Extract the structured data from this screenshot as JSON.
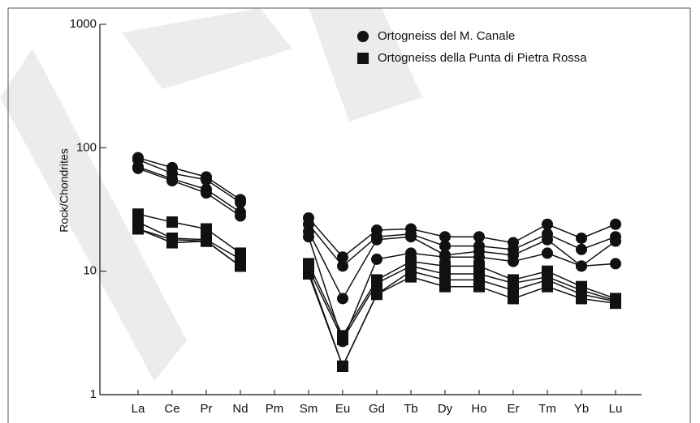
{
  "chart_data": {
    "type": "line",
    "ylabel": "Rock/Chondrites",
    "log_scale": true,
    "ylim": [
      1,
      1000
    ],
    "yticks": [
      1,
      10,
      100,
      1000
    ],
    "categories": [
      "La",
      "Ce",
      "Pr",
      "Nd",
      "Pm",
      "Sm",
      "Eu",
      "Gd",
      "Tb",
      "Dy",
      "Ho",
      "Er",
      "Tm",
      "Yb",
      "Lu"
    ],
    "legend": "upper right",
    "series": [
      {
        "name": "Ortogneiss del M. Canale",
        "color": "#111111",
        "marker": "circle",
        "lines": [
          [
            83,
            69,
            58,
            38,
            null,
            27,
            13,
            21.5,
            22,
            19,
            19,
            17,
            24,
            18.5,
            24
          ],
          [
            80,
            62,
            55,
            36,
            null,
            24,
            11,
            19,
            20,
            16,
            16,
            15,
            20,
            15,
            19
          ],
          [
            70,
            56,
            46,
            30,
            null,
            21,
            6,
            18,
            19,
            13.5,
            14.5,
            13.5,
            18,
            11,
            17.5
          ],
          [
            68,
            54,
            43,
            28,
            null,
            19,
            2.7,
            12.5,
            14,
            13,
            13,
            12,
            14,
            11,
            11.5
          ]
        ]
      },
      {
        "name": "Ortogneiss della Punta di Pietra Rossa",
        "color": "#111111",
        "marker": "square",
        "lines": [
          [
            29,
            25,
            22,
            14,
            null,
            11.5,
            3,
            8.5,
            12,
            11,
            11,
            8.5,
            10,
            7.5,
            6
          ],
          [
            25,
            18.5,
            18,
            12.5,
            null,
            10.5,
            2.8,
            8,
            11,
            9.5,
            9.5,
            8,
            9,
            7,
            5.8
          ],
          [
            22,
            18,
            17.5,
            11,
            null,
            10,
            1.7,
            6.5,
            10,
            8.5,
            8.5,
            7,
            8.5,
            6.5,
            5.7
          ],
          [
            22,
            17,
            17.5,
            11,
            null,
            9.5,
            1.7,
            6.5,
            9,
            7.5,
            7.5,
            6,
            7.5,
            6,
            5.5
          ]
        ]
      }
    ]
  }
}
